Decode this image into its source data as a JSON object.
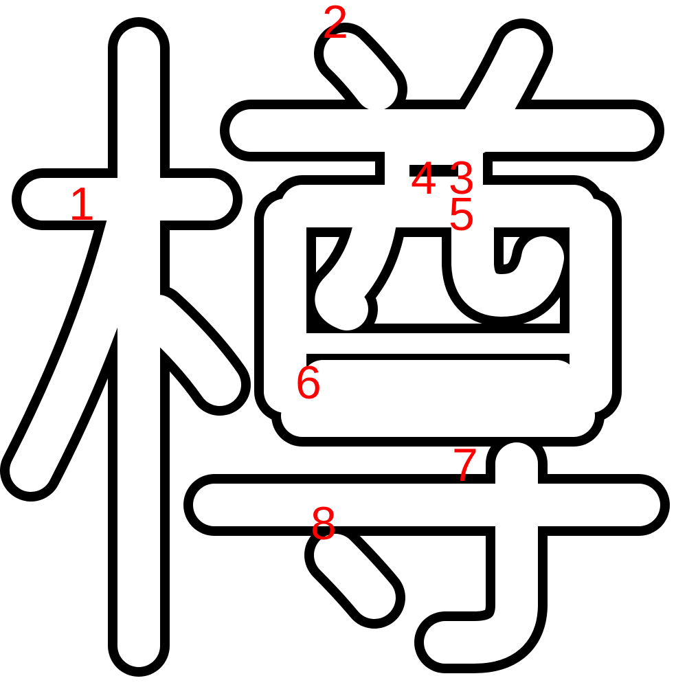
{
  "character": {
    "stroke_numbers": [
      "1",
      "2",
      "3",
      "4",
      "5",
      "6",
      "7",
      "8"
    ]
  },
  "colors": {
    "outline": "#000000",
    "fill": "#ffffff",
    "label": "#ff0000",
    "background": "#ffffff"
  }
}
